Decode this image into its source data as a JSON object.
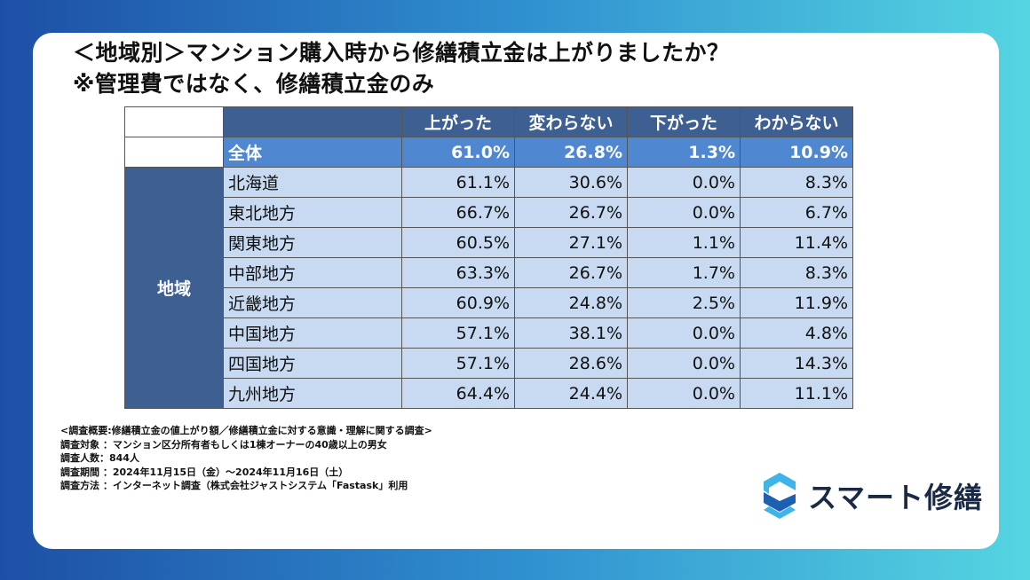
{
  "title": {
    "line1": "＜地域別＞マンション購入時から修繕積立金は上がりましたか？",
    "line2": "※管理費ではなく、修繕積立金のみ"
  },
  "chart_data": {
    "type": "table",
    "columns": [
      "上がった",
      "変わらない",
      "下がった",
      "わからない"
    ],
    "total": {
      "label": "全体",
      "values": [
        "61.0%",
        "26.8%",
        "1.3%",
        "10.9%"
      ]
    },
    "group_label": "地域",
    "rows": [
      {
        "label": "北海道",
        "values": [
          "61.1%",
          "30.6%",
          "0.0%",
          "8.3%"
        ]
      },
      {
        "label": "東北地方",
        "values": [
          "66.7%",
          "26.7%",
          "0.0%",
          "6.7%"
        ]
      },
      {
        "label": "関東地方",
        "values": [
          "60.5%",
          "27.1%",
          "1.1%",
          "11.4%"
        ]
      },
      {
        "label": "中部地方",
        "values": [
          "63.3%",
          "26.7%",
          "1.7%",
          "8.3%"
        ]
      },
      {
        "label": "近畿地方",
        "values": [
          "60.9%",
          "24.8%",
          "2.5%",
          "11.9%"
        ]
      },
      {
        "label": "中国地方",
        "values": [
          "57.1%",
          "38.1%",
          "0.0%",
          "4.8%"
        ]
      },
      {
        "label": "四国地方",
        "values": [
          "57.1%",
          "28.6%",
          "0.0%",
          "14.3%"
        ]
      },
      {
        "label": "九州地方",
        "values": [
          "64.4%",
          "24.4%",
          "0.0%",
          "11.1%"
        ]
      }
    ]
  },
  "notes": [
    "<調査概要:修繕積立金の値上がり額／修繕積立金に対する意識・理解に関する調査>",
    "調査対象 ：マンション区分所有者もしくは1棟オーナーの40歳以上の男女",
    "調査人数：844人",
    "調査期間 ：2024年11月15日（金）〜2024年11月16日（土）",
    "調査方法 ：インターネット調査（株式会社ジャストシステム「Fastask」利用"
  ],
  "logo": {
    "text": "スマート修繕",
    "icon": "s-logo-icon",
    "color_light": "#3fb4e8",
    "color_dark": "#1d5fb0"
  }
}
